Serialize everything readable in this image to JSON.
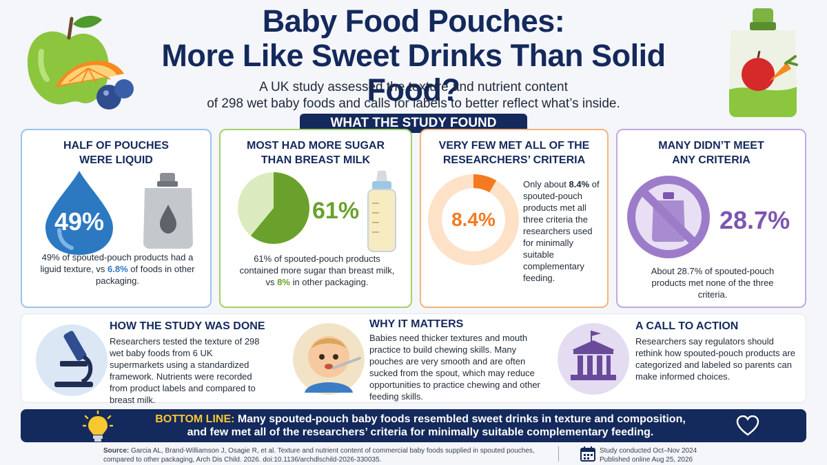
{
  "header": {
    "title_line1": "Baby Food Pouches:",
    "title_line2": "More Like Sweet Drinks Than Solid Food?",
    "subtitle_line1": "A UK study assessed the texture and nutrient content",
    "subtitle_line2": "of 298 wet baby foods and calls for labels to better reflect what’s inside."
  },
  "banner": "WHAT THE STUDY FOUND",
  "cards": [
    {
      "title_line1": "HALF OF POUCHES",
      "title_line2": "WERE LIQUID",
      "stat": "49%",
      "text_a": "49% of spouted-pouch products had a liguid texture, vs ",
      "text_hl": "6.8%",
      "text_b": " of foods in other packaging.",
      "color": "#2c79c2"
    },
    {
      "title_line1": "MOST HAD MORE SUGAR",
      "title_line2": "THAN BREAST MILK",
      "stat": "61%",
      "pie_value": 61,
      "text_a": "61% of spouted-pouch products contained more sugar than breast milk, vs ",
      "text_hl": "8%",
      "text_b": " in other packaging.",
      "color": "#6aa12c"
    },
    {
      "title_line1": "VERY FEW MET ALL OF THE",
      "title_line2": "RESEARCHERS’ CRITERIA",
      "stat": "8.4%",
      "ring_value": 8.4,
      "text_a": "Only about ",
      "text_hl": "8.4%",
      "text_b": " of spouted-pouch products met all three criteria the researchers used for minimally suitable complementary feeding.",
      "color": "#f47a1f"
    },
    {
      "title_line1": "MANY DIDN’T MEET",
      "title_line2": "ANY CRITERIA",
      "stat": "28.7%",
      "text": "About 28.7% of spouted-pouch products met none of the three criteria.",
      "color": "#7d56b0"
    }
  ],
  "sections": [
    {
      "title": "HOW THE STUDY WAS DONE",
      "text": "Researchers tested the texture of 298 wet baby foods from 6 UK supermarkets using a standardized framework. Nutrients were recorded from product labels and compared to breast milk."
    },
    {
      "title": "WHY IT MATTERS",
      "text": "Babies need thicker textures and mouth practice to build chewing skills. Many pouches are very smooth and are often sucked from the spout, which may reduce opportunities to practice chewing and other feeding skills."
    },
    {
      "title": "A CALL TO ACTION",
      "text": "Researchers say regulators should rethink how spouted-pouch products are categorized and labeled so parents can make informed choices."
    }
  ],
  "bottom_line": {
    "label": "BOTTOM LINE:",
    "text_line1": "Many spouted-pouch baby foods resembled sweet drinks in texture and composition,",
    "text_line2": "and few met all of the researchers’ criteria for minimally suitable complementary feeding."
  },
  "footer": {
    "source_label": "Source:",
    "source_text": "Garcia AL, Brand-Williamson J, Osagie R, et al. Texture and nutrient content of commercial baby foods supplied in spouted pouches, compared to other packaging, Arch Dis Child. 2026. doi:10.1136/archdlschild-2026-330035.",
    "conducted": "Study conducted Oct–Nov 2024",
    "published": "Published online Aug 25, 2026"
  },
  "icons": [
    "apple-icon",
    "orange-icon",
    "blueberry-icon",
    "pouch-icon",
    "droplet-icon",
    "baby-bottle-icon",
    "no-pouch-icon",
    "microscope-icon",
    "baby-icon",
    "government-building-icon",
    "lightbulb-icon",
    "heart-icon",
    "calendar-icon"
  ]
}
